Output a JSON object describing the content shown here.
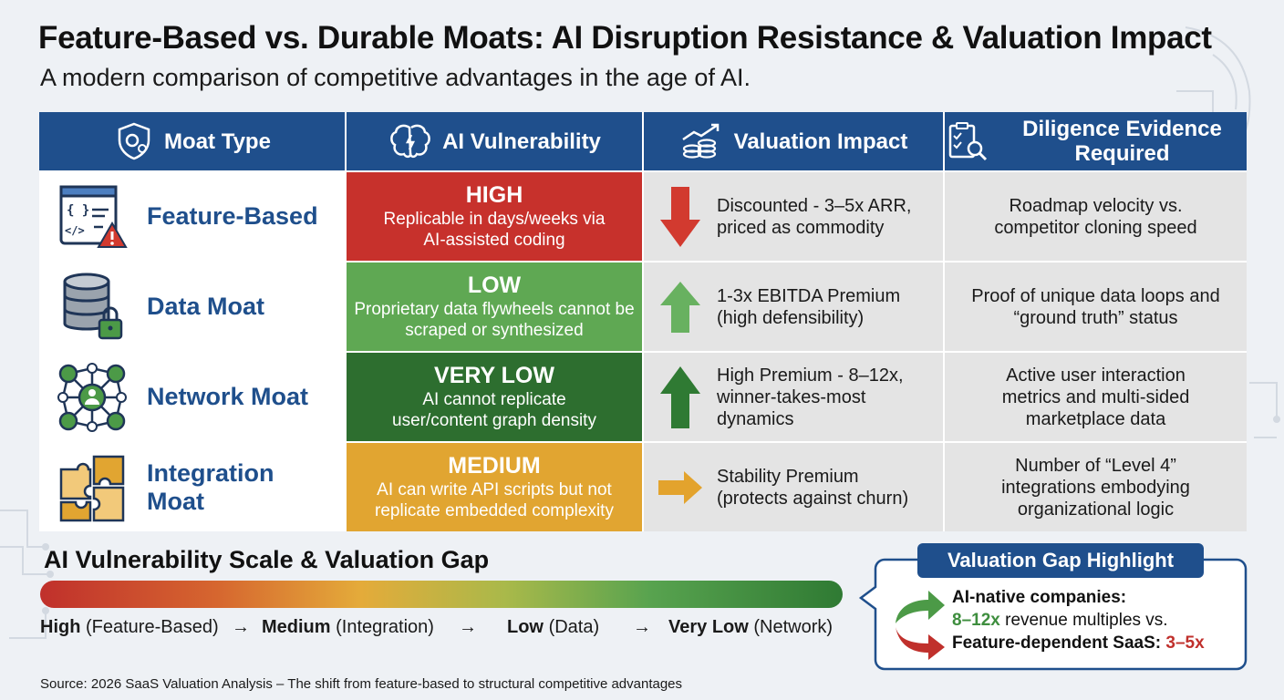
{
  "header": {
    "title": "Feature-Based vs. Durable Moats: AI Disruption Resistance & Valuation Impact",
    "subtitle": "A modern comparison of competitive advantages in the age of AI."
  },
  "table": {
    "columns": [
      {
        "label": "Moat Type",
        "icon": "shield-gear-icon"
      },
      {
        "label": "AI Vulnerability",
        "icon": "brain-icon"
      },
      {
        "label": "Valuation Impact",
        "icon": "coins-growth-icon"
      },
      {
        "label": "Diligence Evidence Required",
        "icon": "clipboard-magnifier-icon"
      }
    ],
    "rows": [
      {
        "moat": "Feature-Based",
        "icon": "code-window-warning-icon",
        "vuln_level": "HIGH",
        "vuln_desc": "Replicable in days/weeks via AI-assisted coding",
        "vuln_color": "#c7312c",
        "valuation": "Discounted - 3–5x ARR, priced as commodity",
        "arrow": "down-arrow-icon",
        "arrow_color": "#d23a2f",
        "evidence": "Roadmap velocity vs. competitor cloning speed"
      },
      {
        "moat": "Data Moat",
        "icon": "database-lock-icon",
        "vuln_level": "LOW",
        "vuln_desc": "Proprietary data flywheels cannot be scraped or synthesized",
        "vuln_color": "#5fa853",
        "valuation": "1-3x EBITDA Premium (high defensibility)",
        "arrow": "up-arrow-icon",
        "arrow_color": "#68b160",
        "evidence": "Proof of unique data loops and “ground truth” status"
      },
      {
        "moat": "Network Moat",
        "icon": "network-nodes-icon",
        "vuln_level": "VERY LOW",
        "vuln_desc": "AI cannot replicate user/content graph density",
        "vuln_color": "#2d6e2f",
        "valuation": "High Premium - 8–12x, winner-takes-most dynamics",
        "arrow": "up-arrow-icon",
        "arrow_color": "#2f7a33",
        "evidence": "Active user interaction metrics and multi-sided marketplace data"
      },
      {
        "moat": "Integration Moat",
        "icon": "puzzle-pieces-icon",
        "vuln_level": "MEDIUM",
        "vuln_desc": "AI can write API scripts but not replicate embedded complexity",
        "vuln_color": "#e1a531",
        "valuation": "Stability Premium (protects against churn)",
        "arrow": "right-arrow-icon",
        "arrow_color": "#e3a32d",
        "evidence": "Number of “Level 4” integrations embodying organizational logic"
      }
    ]
  },
  "scale": {
    "title": "AI Vulnerability Scale & Valuation Gap",
    "items": [
      {
        "level": "High",
        "detail": "(Feature-Based)"
      },
      {
        "level": "Medium",
        "detail": "(Integration)"
      },
      {
        "level": "Low",
        "detail": "(Data)"
      },
      {
        "level": "Very Low",
        "detail": "(Network)"
      }
    ],
    "separator": "→"
  },
  "callout": {
    "title": "Valuation Gap Highlight",
    "line1": "AI-native companies:",
    "line2_value": "8–12x",
    "line2_rest": " revenue multiples vs.",
    "line3_label": "Feature-dependent SaaS: ",
    "line3_value": "3–5x"
  },
  "source": "Source: 2026 SaaS Valuation Analysis – The shift from feature-based to structural competitive advantages",
  "colors": {
    "header_blue": "#1f4f8c",
    "high": "#c7312c",
    "medium": "#e1a531",
    "low": "#5fa853",
    "very_low": "#2d6e2f"
  }
}
